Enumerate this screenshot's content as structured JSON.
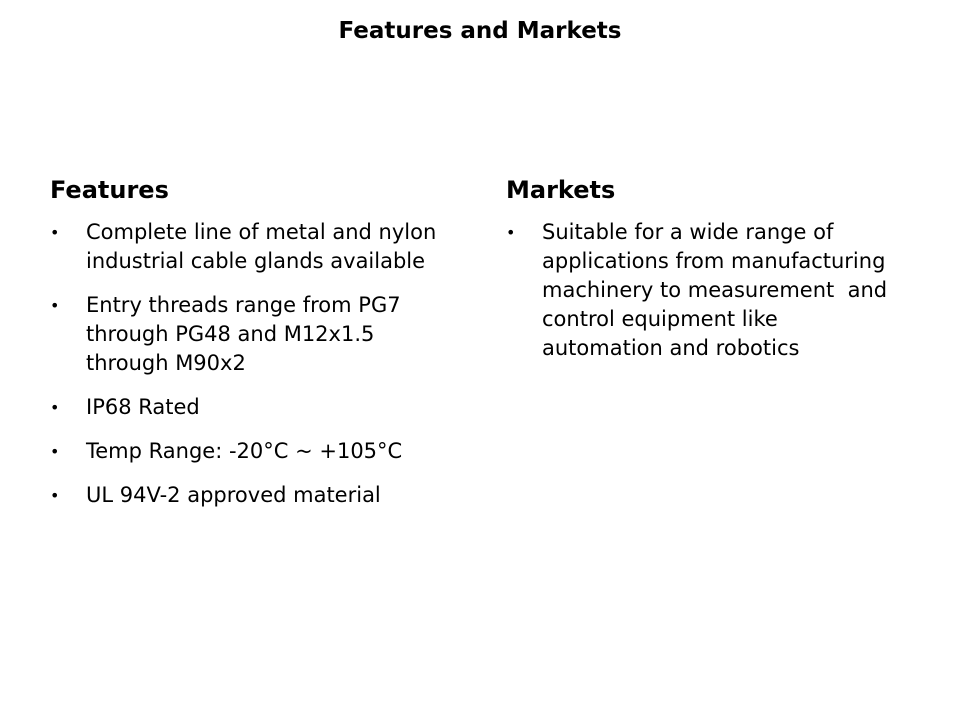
{
  "title": "Features and Markets",
  "features": {
    "heading": "Features",
    "items": [
      "Complete line of metal and nylon industrial cable glands available",
      "Entry threads range from PG7 through PG48 and M12x1.5 through M90x2",
      "IP68 Rated",
      "Temp Range: -20°C ~ +105°C",
      "UL 94V-2 approved material"
    ]
  },
  "markets": {
    "heading": "Markets",
    "items": [
      "Suitable for a wide range of applications from manufacturing machinery to measurement  and control equipment like automation and robotics"
    ]
  }
}
